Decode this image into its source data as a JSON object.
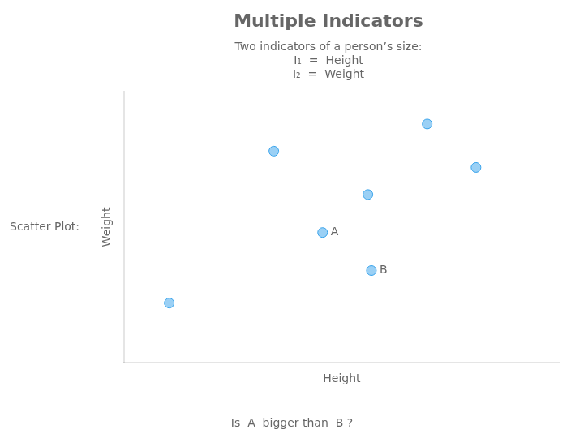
{
  "chart_data": {
    "type": "scatter",
    "title": "Multiple Indicators",
    "subtitle": [
      "Two indicators of a person’s size:",
      "I₁  =  Height",
      "I₂  =  Weight"
    ],
    "xlabel": "Height",
    "ylabel": "Weight",
    "x": [
      0.18,
      0.45,
      0.62,
      0.76,
      0.32,
      0.46,
      -0.12
    ],
    "values": [
      0.78,
      0.62,
      0.88,
      0.72,
      0.48,
      0.34,
      0.22
    ],
    "xlim": [
      -0.25,
      1.0
    ],
    "ylim": [
      0,
      1.0
    ],
    "tick_labels": false,
    "grid": false,
    "annotations": [
      {
        "x": 0.32,
        "y": 0.48,
        "text": "A"
      },
      {
        "x": 0.46,
        "y": 0.34,
        "text": "B"
      },
      {
        "text": "Scatter Plot:"
      },
      {
        "text": "Is  A  bigger than  B ?"
      }
    ]
  }
}
